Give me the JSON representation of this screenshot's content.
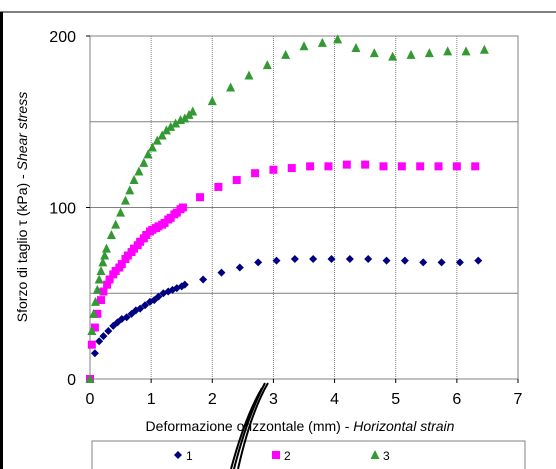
{
  "chart_data": {
    "type": "scatter",
    "title": "",
    "ylabel_plain": "Sforzo di taglio",
    "ylabel_symbol": "τ",
    "ylabel_unit": "(kPa) -",
    "ylabel_italic": "Shear stress",
    "xlabel_plain": "Deformazione orizzontale (mm) -",
    "xlabel_italic": "Horizontal strain",
    "xlim": [
      0,
      7
    ],
    "ylim": [
      0,
      200
    ],
    "x_ticks": [
      0,
      1,
      2,
      3,
      4,
      5,
      6,
      7
    ],
    "y_ticks": [
      0,
      100,
      200
    ],
    "x_tick_labels": [
      "0",
      "1",
      "2",
      "3",
      "4",
      "5",
      "6",
      "7"
    ],
    "y_tick_labels": [
      "0",
      "100",
      "200"
    ],
    "x_gridlines": [
      1,
      2,
      3,
      4,
      5,
      6
    ],
    "y_gridlines": [
      50,
      100,
      150
    ],
    "legend_position": "bottom",
    "series": [
      {
        "name": "1",
        "marker": "diamond",
        "color": "#000080",
        "x": [
          0.0,
          0.08,
          0.15,
          0.22,
          0.3,
          0.38,
          0.45,
          0.52,
          0.6,
          0.68,
          0.75,
          0.82,
          0.9,
          0.98,
          1.05,
          1.12,
          1.2,
          1.28,
          1.35,
          1.42,
          1.5,
          1.55,
          1.85,
          2.15,
          2.45,
          2.75,
          3.05,
          3.35,
          3.65,
          3.95,
          4.25,
          4.55,
          4.85,
          5.15,
          5.45,
          5.75,
          6.05,
          6.35
        ],
        "y": [
          0,
          15,
          22,
          25,
          28,
          31,
          33,
          35,
          36,
          38,
          40,
          41,
          43,
          45,
          46,
          48,
          50,
          51,
          52,
          53,
          54,
          55,
          58,
          62,
          65,
          68,
          69,
          70,
          70,
          70,
          70,
          70,
          69,
          69,
          68,
          68,
          68,
          69
        ]
      },
      {
        "name": "2",
        "marker": "square",
        "color": "#FF00FF",
        "x": [
          0.0,
          0.03,
          0.08,
          0.12,
          0.18,
          0.22,
          0.28,
          0.32,
          0.38,
          0.42,
          0.48,
          0.52,
          0.58,
          0.62,
          0.68,
          0.72,
          0.78,
          0.82,
          0.88,
          0.92,
          0.98,
          1.02,
          1.08,
          1.12,
          1.18,
          1.22,
          1.28,
          1.32,
          1.38,
          1.42,
          1.48,
          1.52,
          1.8,
          2.1,
          2.4,
          2.7,
          3.0,
          3.3,
          3.6,
          3.9,
          4.2,
          4.5,
          4.8,
          5.1,
          5.4,
          5.7,
          6.0,
          6.3
        ],
        "y": [
          0,
          20,
          30,
          38,
          46,
          51,
          55,
          58,
          61,
          63,
          65,
          67,
          70,
          72,
          74,
          76,
          78,
          80,
          82,
          84,
          86,
          87,
          88,
          89,
          90,
          91,
          93,
          94,
          96,
          97,
          99,
          100,
          106,
          112,
          116,
          120,
          122,
          123,
          124,
          124,
          125,
          125,
          124,
          124,
          124,
          124,
          124,
          124
        ]
      },
      {
        "name": "3",
        "marker": "triangle",
        "color": "#339933",
        "x": [
          0.0,
          0.03,
          0.06,
          0.09,
          0.12,
          0.15,
          0.18,
          0.21,
          0.24,
          0.27,
          0.35,
          0.42,
          0.5,
          0.58,
          0.65,
          0.72,
          0.8,
          0.88,
          0.95,
          1.02,
          1.1,
          1.18,
          1.25,
          1.32,
          1.4,
          1.48,
          1.55,
          1.62,
          1.68,
          2.0,
          2.3,
          2.6,
          2.9,
          3.2,
          3.5,
          3.8,
          4.05,
          4.35,
          4.65,
          4.95,
          5.25,
          5.55,
          5.85,
          6.15,
          6.45
        ],
        "y": [
          0,
          28,
          38,
          45,
          52,
          58,
          63,
          68,
          72,
          76,
          84,
          90,
          97,
          104,
          110,
          116,
          121,
          126,
          131,
          135,
          139,
          142,
          145,
          147,
          149,
          151,
          152,
          154,
          156,
          162,
          170,
          177,
          183,
          189,
          194,
          196,
          198,
          193,
          190,
          188,
          189,
          190,
          191,
          191,
          192
        ]
      }
    ]
  }
}
